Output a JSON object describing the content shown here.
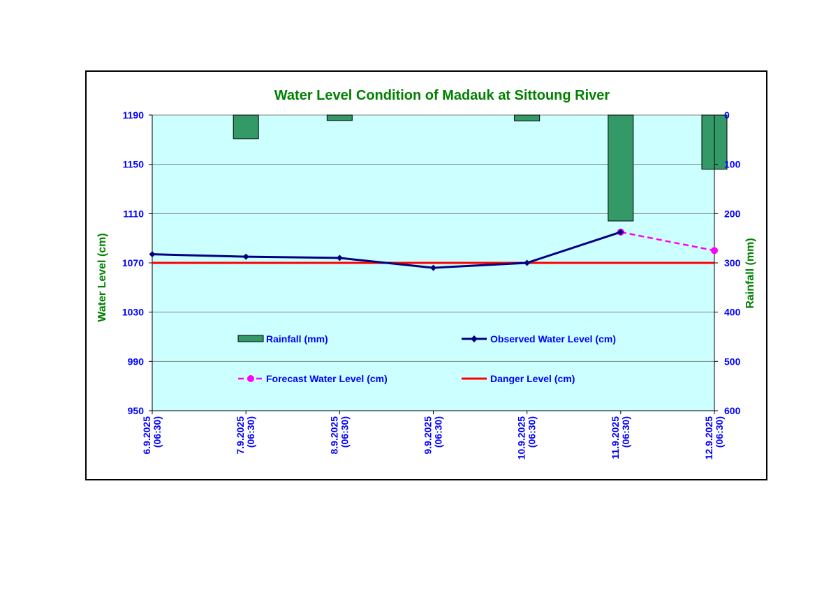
{
  "chart_data": {
    "type": "line",
    "title": "Water Level Condition of Madauk at Sittoung River",
    "ylabel": "Water Level (cm)",
    "y2label": "Rainfall (mm)",
    "categories": [
      [
        "6.9.2025",
        "(06:30)"
      ],
      [
        "7.9.2025",
        "(06:30)"
      ],
      [
        "8.9.2025",
        "(06:30)"
      ],
      [
        "9.9.2025",
        "(06:30)"
      ],
      [
        "10.9.2025",
        "(06:30)"
      ],
      [
        "11.9.2025",
        "(06:30)"
      ],
      [
        "12.9.2025",
        "(06:30)"
      ]
    ],
    "ylim": [
      950,
      1190
    ],
    "yticks": [
      950,
      990,
      1030,
      1070,
      1110,
      1150,
      1190
    ],
    "y2lim": [
      0,
      600
    ],
    "y2ticks": [
      0,
      100,
      200,
      300,
      400,
      500,
      600
    ],
    "y2_inverted": true,
    "grid": true,
    "series": [
      {
        "name": "Rainfall (mm)",
        "type": "bar",
        "axis": "y2",
        "color": "#339966",
        "values": [
          null,
          48,
          11,
          null,
          12,
          215,
          110
        ]
      },
      {
        "name": "Observed Water Level (cm)",
        "type": "line",
        "axis": "y",
        "color": "#000080",
        "marker": "diamond",
        "values": [
          1077,
          1075,
          1074,
          1066,
          1070,
          1095,
          null
        ]
      },
      {
        "name": "Forecast Water Level (cm)",
        "type": "line",
        "axis": "y",
        "color": "#ff00ff",
        "dashed": true,
        "marker": "circle",
        "values": [
          null,
          null,
          null,
          null,
          null,
          1095,
          1080
        ]
      },
      {
        "name": "Danger Level (cm)",
        "type": "line",
        "axis": "y",
        "color": "#ff0000",
        "constant": 1070
      }
    ],
    "colors": {
      "plot_background": "#ccffff",
      "title": "#008000",
      "axis_title": "#008000",
      "tick_labels": "#0000ff",
      "legend_text": "#0000ff",
      "gridline": "#808080"
    }
  }
}
